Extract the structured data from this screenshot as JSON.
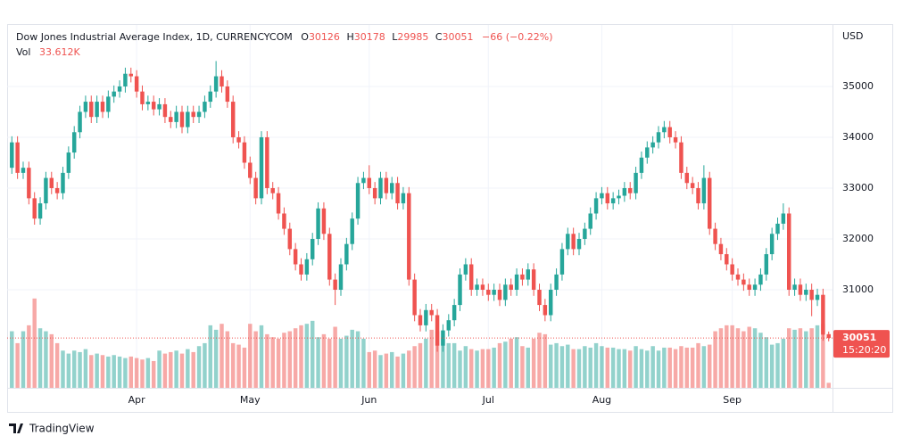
{
  "chart_data": {
    "type": "candlestick",
    "title": "Dow Jones Industrial Average Index, 1D, CURRENCYCOM",
    "legend_labels": [
      "O",
      "H",
      "L",
      "C"
    ],
    "change_label": "−66 (−0.22%)",
    "volume_title": "Vol",
    "volume_label": "33.612K",
    "currency": "USD",
    "countdown": "15:20:20",
    "brand": "TradingView",
    "up_color": "#26a69a",
    "down_color": "#ef5350",
    "grid": true,
    "ylim": [
      29070,
      36210
    ],
    "yticks": [
      31000,
      32000,
      33000,
      34000,
      35000
    ],
    "volume_lim": [
      0,
      1000000
    ],
    "xlim": [
      -0.2,
      144.2
    ],
    "xticks": [
      {
        "value": 22,
        "label": "Apr"
      },
      {
        "value": 42,
        "label": "May"
      },
      {
        "value": 63,
        "label": "Jun"
      },
      {
        "value": 84,
        "label": "Jul"
      },
      {
        "value": 104,
        "label": "Aug"
      },
      {
        "value": 127,
        "label": "Sep"
      }
    ],
    "open": [
      33400,
      33900,
      33300,
      33400,
      32800,
      32400,
      32700,
      33200,
      33000,
      32900,
      33300,
      33700,
      34100,
      34500,
      34700,
      34400,
      34700,
      34500,
      34800,
      34900,
      35000,
      35250,
      35200,
      34900,
      34650,
      34700,
      34550,
      34650,
      34400,
      34300,
      34500,
      34200,
      34500,
      34400,
      34500,
      34700,
      34900,
      35200,
      35000,
      34700,
      34000,
      33900,
      33500,
      33200,
      32800,
      34000,
      33000,
      32900,
      32500,
      32200,
      31800,
      31500,
      31300,
      31600,
      32000,
      32600,
      32100,
      31200,
      31000,
      31500,
      31900,
      32400,
      33100,
      33200,
      33000,
      32800,
      33200,
      32900,
      33100,
      32700,
      32900,
      31200,
      30500,
      30300,
      30600,
      30500,
      29900,
      30200,
      30400,
      30700,
      31300,
      31500,
      31000,
      31100,
      31000,
      30900,
      31000,
      30800,
      31100,
      31000,
      31300,
      31200,
      31400,
      31000,
      30700,
      30500,
      31000,
      31300,
      31800,
      32100,
      31800,
      32000,
      32200,
      32500,
      32800,
      32900,
      32700,
      32800,
      32850,
      33000,
      32900,
      33300,
      33600,
      33800,
      33900,
      34100,
      34200,
      34000,
      33900,
      33300,
      33100,
      33000,
      32700,
      33200,
      32200,
      31900,
      31700,
      31500,
      31300,
      31200,
      31100,
      31000,
      31100,
      31300,
      31700,
      32100,
      32300,
      32500,
      31000,
      31100,
      30900,
      31000,
      30800,
      30900,
      30126
    ],
    "high": [
      34020,
      34020,
      33520,
      33520,
      32920,
      32820,
      33320,
      33320,
      33120,
      33420,
      33820,
      34220,
      34620,
      34820,
      34820,
      34820,
      34820,
      34920,
      35020,
      35120,
      35370,
      35370,
      35320,
      35020,
      34820,
      34820,
      34770,
      34770,
      34520,
      34620,
      34620,
      34620,
      34620,
      34620,
      34820,
      35020,
      35500,
      35320,
      35120,
      34820,
      34120,
      34020,
      33620,
      33320,
      34120,
      34120,
      33120,
      33020,
      32620,
      32320,
      31920,
      31620,
      31720,
      32120,
      32720,
      32720,
      32220,
      31320,
      31620,
      32020,
      32520,
      33220,
      33320,
      33450,
      33120,
      33320,
      33320,
      33220,
      33220,
      33020,
      33020,
      31320,
      30620,
      30720,
      30720,
      30620,
      30320,
      30520,
      30820,
      31420,
      31620,
      31620,
      31220,
      31220,
      31120,
      31120,
      31120,
      31220,
      31220,
      31420,
      31420,
      31520,
      31520,
      31120,
      30820,
      31120,
      31420,
      31920,
      32220,
      32220,
      32120,
      32320,
      32620,
      32920,
      33020,
      33020,
      32920,
      32970,
      33120,
      33120,
      33420,
      33720,
      33920,
      34020,
      34220,
      34320,
      34320,
      34120,
      34020,
      33420,
      33220,
      33120,
      33450,
      33320,
      32320,
      32020,
      31820,
      31620,
      31420,
      31320,
      31220,
      31220,
      31420,
      31820,
      32220,
      32420,
      32700,
      32620,
      31220,
      31220,
      31120,
      31120,
      31020,
      31020,
      30178
    ],
    "low": [
      33280,
      33180,
      33180,
      32680,
      32280,
      32280,
      32580,
      32880,
      32780,
      32780,
      33180,
      33580,
      33980,
      34380,
      34280,
      34280,
      34380,
      34380,
      34680,
      34780,
      34880,
      35080,
      34780,
      34530,
      34530,
      34430,
      34430,
      34280,
      34180,
      34180,
      34080,
      34080,
      34280,
      34280,
      34380,
      34580,
      34780,
      34880,
      34580,
      33880,
      33780,
      33380,
      33080,
      32680,
      32680,
      32880,
      32780,
      32380,
      32080,
      31680,
      31380,
      31180,
      31180,
      31480,
      31880,
      31980,
      31080,
      30700,
      30880,
      31380,
      31780,
      32280,
      32980,
      32880,
      32680,
      32680,
      32780,
      32780,
      32580,
      32580,
      31080,
      30380,
      30180,
      30180,
      30380,
      29780,
      29780,
      30080,
      30280,
      30580,
      31180,
      30880,
      30880,
      30880,
      30780,
      30780,
      30680,
      30680,
      30880,
      30880,
      31080,
      31080,
      30880,
      30580,
      30380,
      30380,
      30880,
      31180,
      31680,
      31680,
      31680,
      31880,
      32080,
      32380,
      32680,
      32580,
      32580,
      32680,
      32730,
      32780,
      32780,
      33180,
      33480,
      33680,
      33780,
      33980,
      33880,
      33780,
      33180,
      32980,
      32880,
      32580,
      32580,
      32080,
      31780,
      31580,
      31380,
      31180,
      31080,
      30980,
      30880,
      30880,
      30980,
      31180,
      31580,
      31980,
      32180,
      30880,
      30880,
      30780,
      30780,
      30480,
      30680,
      29997,
      29985
    ],
    "close": [
      33900,
      33300,
      33400,
      32800,
      32400,
      32700,
      33200,
      33000,
      32900,
      33300,
      33700,
      34100,
      34500,
      34700,
      34400,
      34700,
      34500,
      34800,
      34900,
      35000,
      35250,
      35200,
      34900,
      34650,
      34700,
      34550,
      34650,
      34400,
      34300,
      34500,
      34200,
      34500,
      34400,
      34500,
      34700,
      34900,
      35200,
      35000,
      34700,
      34000,
      33900,
      33500,
      33200,
      32800,
      34000,
      33000,
      32900,
      32500,
      32200,
      31800,
      31500,
      31300,
      31600,
      32000,
      32600,
      32100,
      31200,
      31000,
      31500,
      31900,
      32400,
      33100,
      33200,
      33000,
      32800,
      33200,
      32900,
      33100,
      32700,
      32900,
      31200,
      30500,
      30300,
      30600,
      30500,
      29900,
      30200,
      30400,
      30700,
      31300,
      31500,
      31000,
      31100,
      31000,
      30900,
      31000,
      30800,
      31100,
      31000,
      31300,
      31200,
      31400,
      31000,
      30700,
      30500,
      31000,
      31300,
      31800,
      32100,
      31800,
      32000,
      32200,
      32500,
      32800,
      32900,
      32700,
      32800,
      32850,
      33000,
      32900,
      33300,
      33600,
      33800,
      33900,
      34100,
      34200,
      34000,
      33900,
      33300,
      33100,
      33000,
      32700,
      33200,
      32200,
      31900,
      31700,
      31500,
      31300,
      31200,
      31100,
      31000,
      31100,
      31300,
      31700,
      32100,
      32300,
      32500,
      31000,
      31100,
      30900,
      31000,
      30800,
      30900,
      30117,
      30051
    ],
    "volume": [
      380000,
      300000,
      380000,
      420000,
      600000,
      400000,
      380000,
      360000,
      300000,
      250000,
      230000,
      250000,
      240000,
      260000,
      220000,
      230000,
      220000,
      210000,
      220000,
      210000,
      200000,
      210000,
      200000,
      190000,
      200000,
      180000,
      250000,
      230000,
      240000,
      250000,
      230000,
      260000,
      240000,
      280000,
      300000,
      420000,
      390000,
      430000,
      380000,
      300000,
      290000,
      270000,
      430000,
      380000,
      420000,
      360000,
      340000,
      330000,
      370000,
      380000,
      400000,
      420000,
      430000,
      450000,
      340000,
      360000,
      330000,
      410000,
      330000,
      350000,
      390000,
      380000,
      330000,
      240000,
      250000,
      220000,
      230000,
      240000,
      210000,
      230000,
      250000,
      280000,
      300000,
      330000,
      390000,
      380000,
      330000,
      300000,
      300000,
      250000,
      280000,
      260000,
      250000,
      260000,
      260000,
      270000,
      300000,
      310000,
      330000,
      340000,
      280000,
      270000,
      330000,
      370000,
      360000,
      290000,
      300000,
      280000,
      290000,
      260000,
      260000,
      280000,
      270000,
      300000,
      280000,
      270000,
      270000,
      260000,
      260000,
      250000,
      280000,
      260000,
      250000,
      280000,
      250000,
      270000,
      270000,
      260000,
      280000,
      270000,
      270000,
      300000,
      280000,
      290000,
      380000,
      400000,
      420000,
      420000,
      400000,
      380000,
      410000,
      400000,
      370000,
      340000,
      290000,
      300000,
      330000,
      400000,
      390000,
      400000,
      380000,
      400000,
      420000,
      430000,
      33612
    ]
  }
}
